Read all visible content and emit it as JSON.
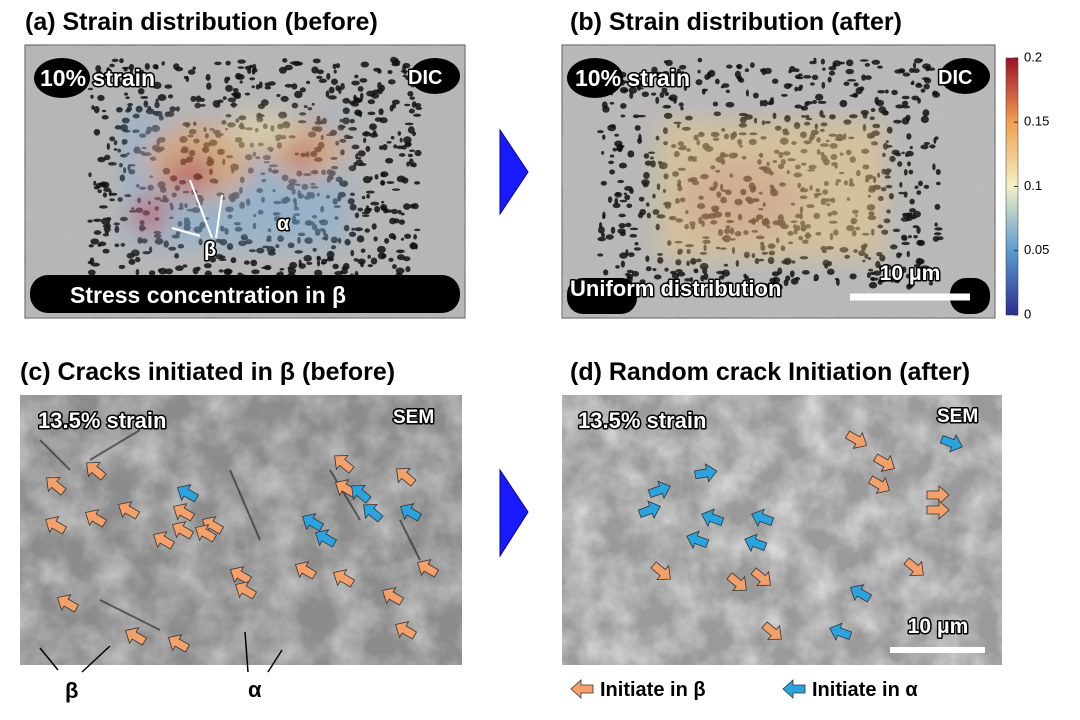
{
  "panels": [
    {
      "title": "(a) Strain distribution (before)",
      "strain": "10% strain",
      "method": "DIC",
      "labels": [
        "β",
        "α"
      ],
      "caption": "Stress concentration in β"
    },
    {
      "title": "(b) Strain distribution (after)",
      "strain": "10% strain",
      "method": "DIC",
      "caption": "Uniform distribution",
      "scale_bar": "10 μm"
    },
    {
      "title": "(c) Cracks initiated in β (before)",
      "strain": "13.5% strain",
      "method": "SEM",
      "labels": [
        "β",
        "α"
      ]
    },
    {
      "title": "(d) Random crack Initiation (after)",
      "strain": "13.5% strain",
      "method": "SEM",
      "scale_bar": "10 μm"
    }
  ],
  "colorbar": {
    "ticks": [
      0,
      0.05,
      0.1,
      0.15,
      0.2
    ]
  },
  "legend": [
    "Initiate in β",
    "Initiate in α"
  ]
}
